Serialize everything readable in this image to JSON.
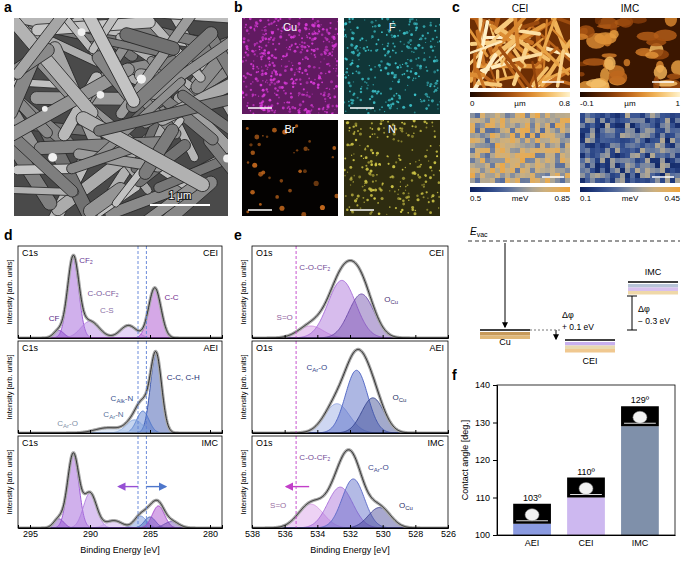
{
  "panel_labels": [
    "a",
    "b",
    "c",
    "d",
    "e",
    "f"
  ],
  "sem": {
    "scale_bar": "1 μm"
  },
  "eds": {
    "maps": [
      {
        "element": "Cu",
        "color": "#d83ad8"
      },
      {
        "element": "F",
        "color": "#3cc4cc"
      },
      {
        "element": "Br",
        "color": "#c0661c"
      },
      {
        "element": "N",
        "color": "#cfc646"
      }
    ]
  },
  "afm": {
    "columns": [
      "CEI",
      "IMC"
    ],
    "colorbars": [
      [
        {
          "range": [
            0,
            0.8
          ],
          "unit": "µm"
        },
        {
          "range": [
            -0.1,
            1
          ],
          "unit": "µm"
        }
      ],
      [
        {
          "range": [
            0.5,
            0.85
          ],
          "unit": "meV"
        },
        {
          "range": [
            0.1,
            0.45
          ],
          "unit": "meV"
        }
      ]
    ]
  },
  "energy_diagram": {
    "vacuum_symbol": "E",
    "vacuum_subscript": "vac",
    "levels": [
      {
        "label": "Cu"
      },
      {
        "label": "CEI",
        "delta": "Δφ",
        "shift": "+ 0.1 eV"
      },
      {
        "label": "IMC",
        "delta": "Δφ",
        "shift": "− 0.3 eV"
      }
    ]
  },
  "chart_data": [
    {
      "type": "xps",
      "spectrum": "C1s",
      "title": "CEI",
      "y_label": "Intensity [arb. units]",
      "xlim": [
        296,
        279
      ],
      "xticks": [
        295,
        290,
        285,
        280
      ],
      "ylim": [
        0,
        1.1
      ],
      "tick_labels": false,
      "ref_lines": [
        {
          "x": 286.0,
          "color": "#5b7fd6"
        },
        {
          "x": 285.3,
          "color": "#5b7fd6"
        }
      ],
      "series": [
        {
          "name": "CF",
          "color": "#7d3cc0",
          "center": 292.6,
          "height": 0.09,
          "fwhm": 1.0
        },
        {
          "name": "CF₂",
          "color": "#9650d4",
          "center": 291.4,
          "height": 0.95,
          "fwhm": 1.1
        },
        {
          "name": "C-O-CF₂",
          "color": "#b07ddf",
          "center": 290.0,
          "height": 0.2,
          "fwhm": 1.8
        },
        {
          "name": "C-S",
          "color": "#c6a2ea",
          "center": 286.8,
          "height": 0.15,
          "fwhm": 1.6
        },
        {
          "name": "C-C",
          "color": "#a23fc9",
          "center": 284.6,
          "height": 0.6,
          "fwhm": 1.2
        }
      ]
    },
    {
      "type": "xps",
      "spectrum": "C1s",
      "title": "AEI",
      "y_label": "Intensity [arb. units]",
      "xlim": [
        296,
        279
      ],
      "xticks": [
        295,
        290,
        285,
        280
      ],
      "ylim": [
        0,
        1.05
      ],
      "tick_labels": false,
      "ref_lines": [
        {
          "x": 286.0,
          "color": "#5b7fd6"
        },
        {
          "x": 285.3,
          "color": "#5b7fd6"
        }
      ],
      "series": [
        {
          "name": "C-C, C-H",
          "color": "#2b48a6",
          "center": 284.5,
          "height": 0.9,
          "fwhm": 1.1
        },
        {
          "name": "CAlk-N",
          "color": "#4e76cb",
          "center": 285.6,
          "height": 0.25,
          "fwhm": 1.2
        },
        {
          "name": "CAr-N",
          "color": "#7ea2dd",
          "center": 286.3,
          "height": 0.15,
          "fwhm": 1.6
        },
        {
          "name": "CAr-O",
          "color": "#b5cdee",
          "center": 288.5,
          "height": 0.06,
          "fwhm": 2.5
        }
      ]
    },
    {
      "type": "xps",
      "spectrum": "C1s",
      "title": "IMC",
      "y_label": "Intensity [arb. units]",
      "x_label": "Binding Energy [eV]",
      "xlim": [
        296,
        279
      ],
      "xticks": [
        295,
        290,
        285,
        280
      ],
      "ylim": [
        0,
        1.0
      ],
      "tick_labels": "x",
      "ref_lines": [
        {
          "x": 286.0,
          "color": "#5b7fd6"
        },
        {
          "x": 285.3,
          "color": "#5b7fd6"
        }
      ],
      "shifts": [
        {
          "from": 286.0,
          "to": 287.6,
          "color": "#9650d4"
        },
        {
          "from": 285.3,
          "to": 283.7,
          "color": "#4e76cb"
        }
      ],
      "series": [
        {
          "color": "#7d3cc0",
          "center": 292.6,
          "height": 0.1,
          "fwhm": 1.0
        },
        {
          "color": "#9650d4",
          "center": 291.4,
          "height": 0.8,
          "fwhm": 1.1
        },
        {
          "color": "#b07ddf",
          "center": 290.0,
          "height": 0.38,
          "fwhm": 1.3
        },
        {
          "color": "#c6a2ea",
          "center": 288.0,
          "height": 0.08,
          "fwhm": 1.6
        },
        {
          "color": "#6c8fd8",
          "center": 285.8,
          "height": 0.13,
          "fwhm": 1.2
        },
        {
          "color": "#3e5fb8",
          "center": 285.0,
          "height": 0.12,
          "fwhm": 1.1
        },
        {
          "color": "#a23fc9",
          "center": 284.3,
          "height": 0.24,
          "fwhm": 1.2
        },
        {
          "color": "#6a48b2",
          "center": 283.2,
          "height": 0.07,
          "fwhm": 1.4
        }
      ]
    },
    {
      "type": "xps",
      "spectrum": "O1s",
      "title": "CEI",
      "y_label": "Intensity [arb. units]",
      "xlim": [
        538,
        526
      ],
      "xticks": [
        538,
        536,
        534,
        532,
        530,
        528,
        526
      ],
      "ylim": [
        0,
        1.15
      ],
      "tick_labels": false,
      "ref_lines": [
        {
          "x": 535.3,
          "color": "#c23fc9"
        }
      ],
      "series": [
        {
          "name": "S=O",
          "color": "#cf8be0",
          "center": 534.4,
          "height": 0.15,
          "fwhm": 1.8
        },
        {
          "name": "C-O-CF₂",
          "color": "#a66bd8",
          "center": 532.5,
          "height": 0.72,
          "fwhm": 2.0
        },
        {
          "name": "OCu",
          "color": "#6b48a8",
          "center": 531.3,
          "height": 0.55,
          "fwhm": 1.8
        }
      ]
    },
    {
      "type": "xps",
      "spectrum": "O1s",
      "title": "AEI",
      "y_label": "Intensity [arb. units]",
      "xlim": [
        538,
        526
      ],
      "xticks": [
        538,
        536,
        534,
        532,
        530,
        528,
        526
      ],
      "ylim": [
        0,
        1.1
      ],
      "tick_labels": false,
      "ref_lines": [
        {
          "x": 535.3,
          "color": "#c23fc9"
        }
      ],
      "series": [
        {
          "color": "#93a6e3",
          "center": 532.8,
          "height": 0.35,
          "fwhm": 1.8
        },
        {
          "name": "CAr-O",
          "color": "#4a60c2",
          "center": 531.6,
          "height": 0.75,
          "fwhm": 1.6
        },
        {
          "name": "OCu",
          "color": "#33438f",
          "center": 530.6,
          "height": 0.42,
          "fwhm": 1.6
        }
      ]
    },
    {
      "type": "xps",
      "spectrum": "O1s",
      "title": "IMC",
      "y_label": "Intensity [arb. units]",
      "x_label": "Binding Energy [eV]",
      "xlim": [
        538,
        526
      ],
      "xticks": [
        538,
        536,
        534,
        532,
        530,
        528,
        526
      ],
      "ylim": [
        0,
        1.35
      ],
      "tick_labels": "x",
      "ref_lines": [
        {
          "x": 535.3,
          "color": "#c23fc9"
        }
      ],
      "shifts": [
        {
          "from": 534.5,
          "to": 535.9,
          "color": "#c23fc9"
        }
      ],
      "series": [
        {
          "name": "S=O",
          "color": "#d79be6",
          "center": 534.4,
          "height": 0.35,
          "fwhm": 1.8
        },
        {
          "name": "C-O-CF₂",
          "color": "#a66bd8",
          "center": 532.6,
          "height": 0.6,
          "fwhm": 1.8
        },
        {
          "name": "CAr-O",
          "color": "#5767c6",
          "center": 531.8,
          "height": 0.72,
          "fwhm": 1.6
        },
        {
          "name": "OCu",
          "color": "#3d3f92",
          "center": 530.2,
          "height": 0.3,
          "fwhm": 1.6
        }
      ]
    },
    {
      "type": "bar",
      "y_label": "Contact angle [deg.]",
      "categories": [
        "AEI",
        "CEI",
        "IMC"
      ],
      "values": [
        103,
        110,
        129
      ],
      "value_labels": [
        "103º",
        "110º",
        "129º"
      ],
      "data_labels": true,
      "colors": [
        "#8a9ae0",
        "#cdb8f0",
        "#7f90aa"
      ],
      "ylim": [
        100,
        140
      ],
      "yticks": [
        100,
        110,
        120,
        130,
        140
      ]
    }
  ]
}
